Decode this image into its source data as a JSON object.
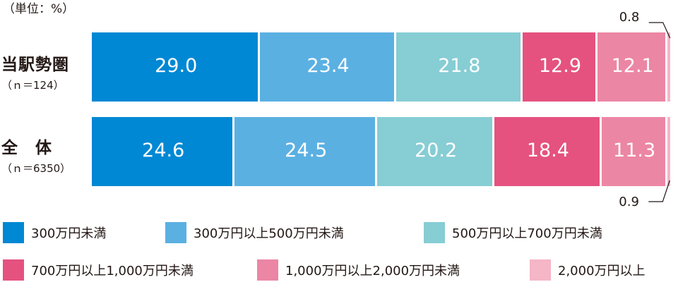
{
  "unit_label": "（単位：%）",
  "rows": [
    {
      "name": "当駅勢圏",
      "n": "（ｎ＝124）"
    },
    {
      "name": "全　体",
      "n": "（ｎ＝6350）"
    }
  ],
  "colors": [
    "#0088d4",
    "#5bb0e2",
    "#86cdd4",
    "#e5527f",
    "#ec86a5",
    "#f5b6c7"
  ],
  "chart_data": {
    "type": "bar",
    "orientation": "horizontal-stacked-100",
    "categories": [
      "当駅勢圏",
      "全　体"
    ],
    "series": [
      {
        "name": "300万円未満",
        "values": [
          29.0,
          24.6
        ]
      },
      {
        "name": "300万円以上500万円未満",
        "values": [
          23.4,
          24.5
        ]
      },
      {
        "name": "500万円以上700万円未満",
        "values": [
          21.8,
          20.2
        ]
      },
      {
        "name": "700万円以上1,000万円未満",
        "values": [
          12.9,
          18.4
        ]
      },
      {
        "name": "1,000万円以上2,000万円未満",
        "values": [
          12.1,
          11.3
        ]
      },
      {
        "name": "2,000万円以上",
        "values": [
          0.8,
          0.9
        ]
      }
    ],
    "data_labels": [
      [
        "29.0",
        "23.4",
        "21.8",
        "12.9",
        "12.1",
        "0.8"
      ],
      [
        "24.6",
        "24.5",
        "20.2",
        "18.4",
        "11.3",
        "0.9"
      ]
    ],
    "unit": "%",
    "legend": "bottom"
  }
}
